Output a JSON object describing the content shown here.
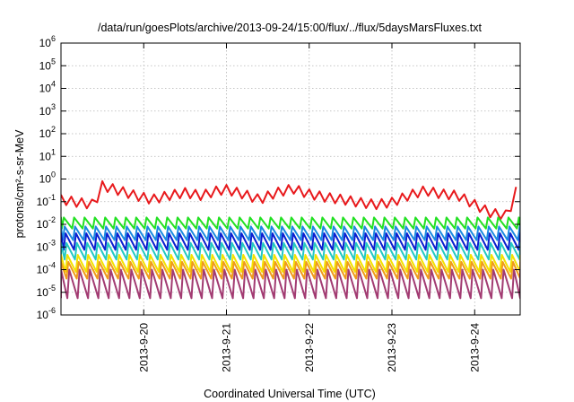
{
  "chart_data": {
    "type": "line",
    "title": "/data/run/goesPlots/archive/2013-09-24/15:00/flux/../flux/5daysMarsFluxes.txt",
    "xlabel": "Coordinated Universal Time (UTC)",
    "ylabel": "protons/cm²-s-sr-MeV",
    "yscale": "log",
    "ylim": [
      1e-06,
      1000000.0
    ],
    "xlim": [
      0,
      5.55
    ],
    "grid": true,
    "legend": "none",
    "x_ticks": [
      {
        "x": 1,
        "label": "2013-9-20"
      },
      {
        "x": 2,
        "label": "2013-9-21"
      },
      {
        "x": 3,
        "label": "2013-9-22"
      },
      {
        "x": 4,
        "label": "2013-9-23"
      },
      {
        "x": 5,
        "label": "2013-9-24"
      }
    ],
    "y_ticks": [
      {
        "v": 1e-06,
        "base": "10",
        "exp": "-6"
      },
      {
        "v": 1e-05,
        "base": "10",
        "exp": "-5"
      },
      {
        "v": 0.0001,
        "base": "10",
        "exp": "-4"
      },
      {
        "v": 0.001,
        "base": "10",
        "exp": "-3"
      },
      {
        "v": 0.01,
        "base": "10",
        "exp": "-2"
      },
      {
        "v": 0.1,
        "base": "10",
        "exp": "-1"
      },
      {
        "v": 1,
        "base": "10",
        "exp": "0"
      },
      {
        "v": 10,
        "base": "10",
        "exp": "1"
      },
      {
        "v": 100,
        "base": "10",
        "exp": "2"
      },
      {
        "v": 1000,
        "base": "10",
        "exp": "3"
      },
      {
        "v": 10000,
        "base": "10",
        "exp": "4"
      },
      {
        "v": 100000,
        "base": "10",
        "exp": "5"
      },
      {
        "v": 1000000,
        "base": "10",
        "exp": "6"
      }
    ],
    "sawtooth_period_days": 0.125,
    "series": [
      {
        "color": "#e8191c",
        "width": 2,
        "style": "smooth",
        "points": [
          [
            0,
            0.2
          ],
          [
            0.2,
            0.15
          ],
          [
            0.4,
            0.12
          ],
          [
            0.5,
            0.8
          ],
          [
            0.7,
            0.5
          ],
          [
            0.9,
            0.3
          ],
          [
            1.1,
            0.2
          ],
          [
            1.3,
            0.3
          ],
          [
            1.5,
            0.4
          ],
          [
            1.7,
            0.3
          ],
          [
            1.9,
            0.5
          ],
          [
            2.0,
            0.55
          ],
          [
            2.2,
            0.35
          ],
          [
            2.4,
            0.2
          ],
          [
            2.6,
            0.4
          ],
          [
            2.8,
            0.6
          ],
          [
            3.0,
            0.35
          ],
          [
            3.2,
            0.25
          ],
          [
            3.4,
            0.2
          ],
          [
            3.6,
            0.15
          ],
          [
            3.8,
            0.12
          ],
          [
            4.0,
            0.15
          ],
          [
            4.2,
            0.3
          ],
          [
            4.4,
            0.5
          ],
          [
            4.6,
            0.35
          ],
          [
            4.8,
            0.3
          ],
          [
            5.0,
            0.12
          ],
          [
            5.2,
            0.05
          ],
          [
            5.4,
            0.04
          ],
          [
            5.5,
            0.45
          ],
          [
            5.55,
            0.35
          ]
        ],
        "jag": 2.6
      },
      {
        "color": "#22e022",
        "width": 2,
        "style": "saw",
        "peak": 0.02,
        "trough": 0.0065
      },
      {
        "color": "#1a8ae0",
        "width": 2,
        "style": "saw",
        "peak": 0.008,
        "trough": 0.002
      },
      {
        "color": "#0a1fd0",
        "width": 2,
        "style": "saw",
        "peak": 0.004,
        "trough": 0.00075
      },
      {
        "color": "#23c9c2",
        "width": 2,
        "style": "saw",
        "peak": 0.0015,
        "trough": 0.00028
      },
      {
        "color": "#f3e200",
        "width": 2,
        "style": "saw",
        "peak": 0.00045,
        "trough": 8e-05
      },
      {
        "color": "#f09a1a",
        "width": 2,
        "style": "saw",
        "peak": 0.00022,
        "trough": 4e-05
      },
      {
        "color": "#a23b72",
        "width": 2,
        "style": "saw",
        "peak": 0.0001,
        "trough": 5.5e-06
      }
    ]
  }
}
